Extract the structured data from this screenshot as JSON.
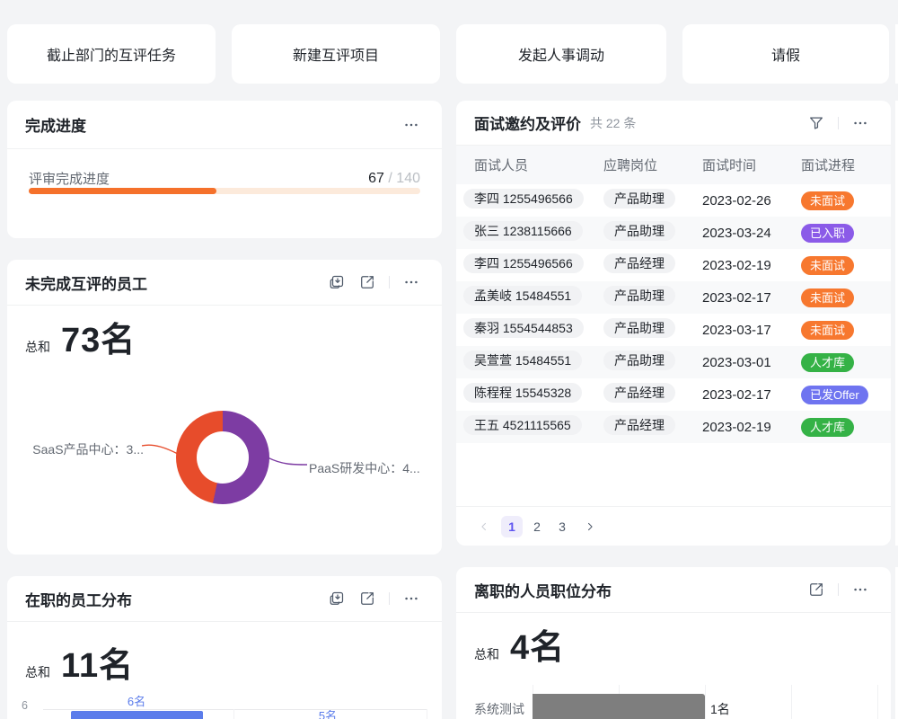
{
  "quick_actions": [
    {
      "label": "截止部门的互评任务"
    },
    {
      "label": "新建互评项目"
    },
    {
      "label": "发起人事调动"
    },
    {
      "label": "请假"
    }
  ],
  "cards": {
    "progress": {
      "title": "完成进度",
      "row_label": "评审完成进度",
      "done": "67",
      "divider": " / ",
      "total": "140",
      "done_num": 67,
      "total_num": 140,
      "bar_color": "#F5712B",
      "track_color": "#FCEADB"
    },
    "incomplete": {
      "title": "未完成互评的员工",
      "total_label": "总和",
      "total_value": "73名",
      "label_left": "SaaS产品中心：3...",
      "label_right": "PaaS研发中心：4..."
    },
    "staff": {
      "title": "在职的员工分布",
      "total_label": "总和",
      "total_value": "11名",
      "bar1_label": "6名",
      "bar2_label": "5名",
      "y_tick": "6",
      "bar_color": "#5B7CEB"
    },
    "interview": {
      "title": "面试邀约及评价",
      "count": "共 22 条",
      "headers": [
        "面试人员",
        "应聘岗位",
        "面试时间",
        "面试进程"
      ],
      "status_colors": {
        "orange": "#F7782F",
        "purple": "#8B5BE8",
        "green": "#35B246",
        "blue": "#6F74F0"
      },
      "rows": [
        {
          "name": "李四 1255496566",
          "position": "产品助理",
          "date": "2023-02-26",
          "status": "未面试",
          "status_color": "orange"
        },
        {
          "name": "张三 1238115666",
          "position": "产品助理",
          "date": "2023-03-24",
          "status": "已入职",
          "status_color": "purple"
        },
        {
          "name": "李四 1255496566",
          "position": "产品经理",
          "date": "2023-02-19",
          "status": "未面试",
          "status_color": "orange"
        },
        {
          "name": "孟美岐 15484551",
          "position": "产品助理",
          "date": "2023-02-17",
          "status": "未面试",
          "status_color": "orange"
        },
        {
          "name": "秦羽 1554544853",
          "position": "产品助理",
          "date": "2023-03-17",
          "status": "未面试",
          "status_color": "orange"
        },
        {
          "name": "吴萱萱 15484551",
          "position": "产品助理",
          "date": "2023-03-01",
          "status": "人才库",
          "status_color": "green"
        },
        {
          "name": "陈程程 15545328",
          "position": "产品经理",
          "date": "2023-02-17",
          "status": "已发Offer",
          "status_color": "blue"
        },
        {
          "name": "王五 4521115565",
          "position": "产品经理",
          "date": "2023-02-19",
          "status": "人才库",
          "status_color": "green"
        }
      ],
      "pagination": {
        "pages": [
          "1",
          "2",
          "3"
        ],
        "active": "1"
      }
    },
    "resigned": {
      "title": "离职的人员职位分布",
      "total_label": "总和",
      "total_value": "4名",
      "category": "系统测试",
      "value_label": "1名",
      "bar_color": "#7E7E7E"
    }
  },
  "chart_data": [
    {
      "id": "review_progress",
      "type": "progress",
      "label": "评审完成进度",
      "value": 67,
      "max": 140,
      "color": "#F5712B"
    },
    {
      "id": "incomplete_review_donut",
      "type": "pie",
      "title": "未完成互评的员工",
      "total": "73名",
      "slices": [
        {
          "label": "PaaS研发中心：4...",
          "pct": 53.4,
          "color": "#7D3CA3"
        },
        {
          "label": "SaaS产品中心：3...",
          "pct": 46.6,
          "color": "#E74C2B"
        }
      ],
      "legend": "leader-line labels"
    },
    {
      "id": "active_staff_bar",
      "type": "bar",
      "title": "在职的员工分布",
      "total": "11名",
      "values": [
        6,
        5
      ],
      "value_labels": [
        "6名",
        "5名"
      ],
      "visible_y_tick": 6,
      "bar_color": "#5B7CEB",
      "note": "chart cropped at viewport bottom"
    },
    {
      "id": "resigned_positions_bar",
      "type": "bar",
      "orientation": "horizontal",
      "title": "离职的人员职位分布",
      "total": "4名",
      "categories": [
        "系统测试"
      ],
      "values": [
        1
      ],
      "value_labels": [
        "1名"
      ],
      "xlim": [
        0,
        2
      ],
      "bar_color": "#7E7E7E",
      "note": "chart cropped at viewport bottom"
    }
  ]
}
